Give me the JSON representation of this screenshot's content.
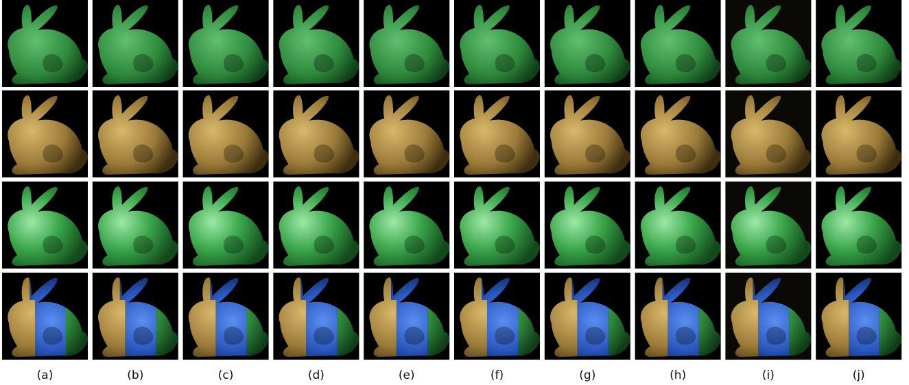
{
  "captions": [
    "(a)",
    "(b)",
    "(c)",
    "(d)",
    "(e)",
    "(f)",
    "(g)",
    "(h)",
    "(i)",
    "(j)"
  ]
}
